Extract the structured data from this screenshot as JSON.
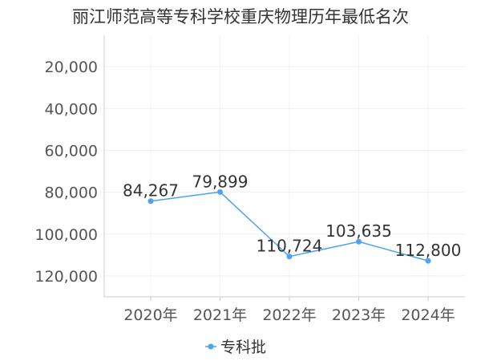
{
  "chart_data": {
    "type": "line",
    "title": "丽江师范高等专科学校重庆物理历年最低名次",
    "categories": [
      "2020年",
      "2021年",
      "2022年",
      "2023年",
      "2024年"
    ],
    "series": [
      {
        "name": "专科批",
        "values": [
          84267,
          79899,
          110724,
          103635,
          112800
        ],
        "labels": [
          "84,267",
          "79,899",
          "110,724",
          "103,635",
          "112,800"
        ],
        "color": "#4da3f0"
      }
    ],
    "y_ticks": [
      20000,
      40000,
      60000,
      80000,
      100000,
      120000
    ],
    "y_tick_labels": [
      "20,000",
      "40,000",
      "60,000",
      "80,000",
      "100,000",
      "120,000"
    ],
    "ylim": [
      5000,
      130000
    ],
    "y_inverted": true,
    "grid": true,
    "legend_position": "bottom"
  }
}
